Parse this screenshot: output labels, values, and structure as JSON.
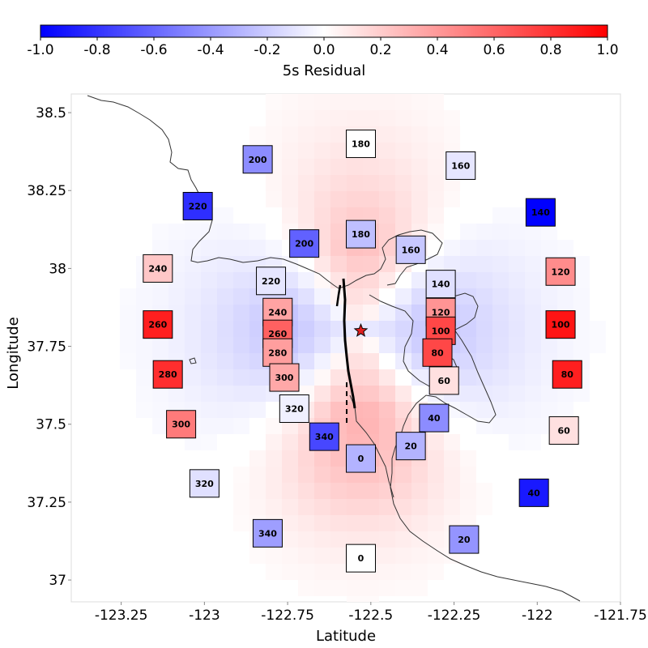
{
  "colorbar": {
    "label": "5s Residual",
    "range": [
      -1.0,
      1.0
    ],
    "ticks": [
      "-1.0",
      "-0.8",
      "-0.6",
      "-0.4",
      "-0.2",
      "0.0",
      "0.2",
      "0.4",
      "0.6",
      "0.8",
      "1.0"
    ],
    "colors": {
      "negative": "#0000ff",
      "zero": "#ffffff",
      "positive": "#ff0000"
    }
  },
  "axes": {
    "xlabel": "Latitude",
    "ylabel": "Longitude",
    "xlim": [
      -123.4,
      -121.75
    ],
    "ylim": [
      36.93,
      38.56
    ],
    "xticks": [
      -123.25,
      -123.0,
      -122.75,
      -122.5,
      -122.25,
      -122.0,
      -121.75
    ],
    "xtick_labels": [
      "-123.25",
      "-123",
      "-122.75",
      "-122.5",
      "-122.25",
      "-122",
      "-121.75"
    ],
    "yticks": [
      37.0,
      37.25,
      37.5,
      37.75,
      38.0,
      38.25,
      38.5
    ],
    "ytick_labels": [
      "37",
      "37.25",
      "37.5",
      "37.75",
      "38",
      "38.25",
      "38.5"
    ]
  },
  "epicenter": {
    "lon": -122.53,
    "lat": 37.8
  },
  "stations": [
    {
      "label": "180",
      "lon": -122.53,
      "lat": 38.4,
      "residual": 0.0
    },
    {
      "label": "200",
      "lon": -122.84,
      "lat": 38.35,
      "residual": -0.45
    },
    {
      "label": "160",
      "lon": -122.23,
      "lat": 38.33,
      "residual": -0.1
    },
    {
      "label": "220",
      "lon": -123.02,
      "lat": 38.2,
      "residual": -0.82
    },
    {
      "label": "140",
      "lon": -121.99,
      "lat": 38.18,
      "residual": -1.0
    },
    {
      "label": "180",
      "lon": -122.53,
      "lat": 38.11,
      "residual": -0.25
    },
    {
      "label": "200",
      "lon": -122.7,
      "lat": 38.08,
      "residual": -0.62
    },
    {
      "label": "160",
      "lon": -122.38,
      "lat": 38.06,
      "residual": -0.22
    },
    {
      "label": "240",
      "lon": -123.14,
      "lat": 38.0,
      "residual": 0.22
    },
    {
      "label": "120",
      "lon": -121.93,
      "lat": 37.99,
      "residual": 0.45
    },
    {
      "label": "220",
      "lon": -122.8,
      "lat": 37.96,
      "residual": -0.1
    },
    {
      "label": "140",
      "lon": -122.29,
      "lat": 37.95,
      "residual": -0.12
    },
    {
      "label": "240",
      "lon": -122.78,
      "lat": 37.86,
      "residual": 0.36
    },
    {
      "label": "120",
      "lon": -122.29,
      "lat": 37.86,
      "residual": 0.42
    },
    {
      "label": "260",
      "lon": -123.14,
      "lat": 37.82,
      "residual": 0.88
    },
    {
      "label": "100",
      "lon": -121.93,
      "lat": 37.82,
      "residual": 0.92
    },
    {
      "label": "260",
      "lon": -122.78,
      "lat": 37.79,
      "residual": 0.62
    },
    {
      "label": "100",
      "lon": -122.29,
      "lat": 37.8,
      "residual": 0.72
    },
    {
      "label": "280",
      "lon": -122.78,
      "lat": 37.73,
      "residual": 0.38
    },
    {
      "label": "80",
      "lon": -122.3,
      "lat": 37.73,
      "residual": 0.72
    },
    {
      "label": "280",
      "lon": -123.11,
      "lat": 37.66,
      "residual": 0.82
    },
    {
      "label": "80",
      "lon": -121.91,
      "lat": 37.66,
      "residual": 0.88
    },
    {
      "label": "300",
      "lon": -122.76,
      "lat": 37.65,
      "residual": 0.34
    },
    {
      "label": "60",
      "lon": -122.28,
      "lat": 37.64,
      "residual": 0.12
    },
    {
      "label": "320",
      "lon": -122.73,
      "lat": 37.55,
      "residual": -0.06
    },
    {
      "label": "40",
      "lon": -122.31,
      "lat": 37.52,
      "residual": -0.45
    },
    {
      "label": "300",
      "lon": -123.07,
      "lat": 37.5,
      "residual": 0.52
    },
    {
      "label": "60",
      "lon": -121.92,
      "lat": 37.48,
      "residual": 0.12
    },
    {
      "label": "340",
      "lon": -122.64,
      "lat": 37.46,
      "residual": -0.72
    },
    {
      "label": "20",
      "lon": -122.38,
      "lat": 37.43,
      "residual": -0.3
    },
    {
      "label": "0",
      "lon": -122.53,
      "lat": 37.39,
      "residual": -0.3
    },
    {
      "label": "320",
      "lon": -123.0,
      "lat": 37.31,
      "residual": -0.12
    },
    {
      "label": "40",
      "lon": -122.01,
      "lat": 37.28,
      "residual": -0.9
    },
    {
      "label": "340",
      "lon": -122.81,
      "lat": 37.15,
      "residual": -0.38
    },
    {
      "label": "20",
      "lon": -122.22,
      "lat": 37.13,
      "residual": -0.42
    },
    {
      "label": "0",
      "lon": -122.53,
      "lat": 37.07,
      "residual": 0.0
    }
  ]
}
